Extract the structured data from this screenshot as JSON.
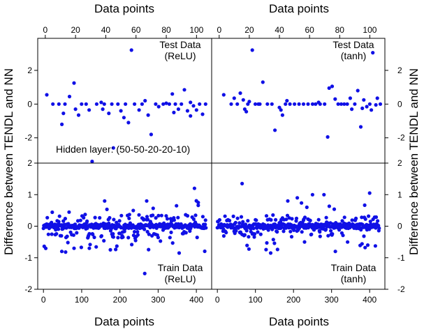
{
  "figure": {
    "x_axis_title": "Data points",
    "y_axis_title": "Difference between TENDL and NN",
    "point_color": "#1010e6"
  },
  "chart_data": [
    {
      "type": "scatter",
      "panel": "top-left",
      "annotation": [
        "Test Data",
        "(ReLU)"
      ],
      "extra_annotation": "Hidden layer: (50-50-20-20-10)",
      "xlim": [
        -5,
        110
      ],
      "ylim": [
        -3.5,
        3.9
      ],
      "xticks": [
        0,
        20,
        40,
        60,
        80,
        100
      ],
      "yticks": [
        -2,
        0,
        2
      ],
      "points": [
        [
          1,
          0.55
        ],
        [
          5,
          0.0
        ],
        [
          9,
          0.0
        ],
        [
          13,
          0.0
        ],
        [
          16,
          0.45
        ],
        [
          19,
          1.25
        ],
        [
          20,
          -0.3
        ],
        [
          24,
          0.0
        ],
        [
          27,
          0.0
        ],
        [
          29,
          -0.35
        ],
        [
          31,
          -3.4
        ],
        [
          34,
          0.0
        ],
        [
          37,
          0.1
        ],
        [
          39,
          0.0
        ],
        [
          42,
          -0.55
        ],
        [
          44,
          0.0
        ],
        [
          45,
          -2.6
        ],
        [
          48,
          0.0
        ],
        [
          50,
          -0.4
        ],
        [
          53,
          0.0
        ],
        [
          55,
          -1.1
        ],
        [
          57,
          3.2
        ],
        [
          59,
          0.0
        ],
        [
          62,
          -0.35
        ],
        [
          64,
          0.0
        ],
        [
          66,
          0.2
        ],
        [
          68,
          -0.65
        ],
        [
          70,
          -1.8
        ],
        [
          73,
          0.0
        ],
        [
          75,
          -0.15
        ],
        [
          78,
          0.0
        ],
        [
          80,
          0.05
        ],
        [
          82,
          0.0
        ],
        [
          84,
          0.6
        ],
        [
          86,
          0.0
        ],
        [
          88,
          -0.3
        ],
        [
          90,
          0.0
        ],
        [
          92,
          0.85
        ],
        [
          94,
          -0.4
        ],
        [
          96,
          -0.7
        ],
        [
          98,
          -0.1
        ],
        [
          100,
          -0.35
        ],
        [
          102,
          0.0
        ],
        [
          104,
          -0.6
        ],
        [
          106,
          0.0
        ],
        [
          11,
          -1.2
        ],
        [
          12,
          -0.55
        ],
        [
          22,
          -0.65
        ],
        [
          38,
          -0.3
        ],
        [
          52,
          -0.8
        ],
        [
          85,
          -0.5
        ],
        [
          96,
          0.1
        ]
      ]
    },
    {
      "type": "scatter",
      "panel": "top-right",
      "annotation": [
        "Test Data",
        "(tanh)"
      ],
      "xlim": [
        -5,
        110
      ],
      "ylim": [
        -3.5,
        3.9
      ],
      "xticks": [
        0,
        20,
        40,
        60,
        80,
        100
      ],
      "yticks": [
        -2,
        0,
        2
      ],
      "points": [
        [
          3,
          0.55
        ],
        [
          8,
          0.0
        ],
        [
          12,
          0.0
        ],
        [
          14,
          0.65
        ],
        [
          16,
          0.25
        ],
        [
          17,
          -0.3
        ],
        [
          18,
          -0.45
        ],
        [
          19,
          0.0
        ],
        [
          22,
          3.2
        ],
        [
          24,
          0.0
        ],
        [
          27,
          0.0
        ],
        [
          29,
          1.3
        ],
        [
          32,
          0.0
        ],
        [
          35,
          0.0
        ],
        [
          37,
          -1.55
        ],
        [
          40,
          -0.2
        ],
        [
          41,
          -0.35
        ],
        [
          42,
          -0.65
        ],
        [
          44,
          0.0
        ],
        [
          47,
          0.0
        ],
        [
          50,
          0.0
        ],
        [
          53,
          0.0
        ],
        [
          56,
          0.0
        ],
        [
          59,
          0.0
        ],
        [
          62,
          0.0
        ],
        [
          64,
          0.0
        ],
        [
          67,
          0.0
        ],
        [
          70,
          0.0
        ],
        [
          72,
          -1.95
        ],
        [
          73,
          0.95
        ],
        [
          75,
          1.05
        ],
        [
          77,
          0.3
        ],
        [
          79,
          0.0
        ],
        [
          81,
          0.0
        ],
        [
          83,
          0.0
        ],
        [
          85,
          0.0
        ],
        [
          87,
          0.35
        ],
        [
          88,
          -0.3
        ],
        [
          90,
          0.0
        ],
        [
          92,
          0.8
        ],
        [
          94,
          -1.35
        ],
        [
          96,
          0.25
        ],
        [
          98,
          -0.15
        ],
        [
          100,
          0.0
        ],
        [
          101,
          -0.35
        ],
        [
          102,
          3.05
        ],
        [
          104,
          -0.05
        ],
        [
          105,
          0.35
        ],
        [
          107,
          0.0
        ],
        [
          10,
          0.35
        ],
        [
          20,
          0.15
        ],
        [
          26,
          0.0
        ],
        [
          45,
          0.2
        ],
        [
          66,
          0.1
        ],
        [
          95,
          -0.25
        ]
      ]
    },
    {
      "type": "scatter",
      "panel": "bottom-left",
      "annotation": [
        "Train Data",
        "(ReLU)"
      ],
      "xlim": [
        -15,
        440
      ],
      "ylim": [
        -2,
        2
      ],
      "xticks": [
        0,
        100,
        200,
        300,
        400
      ],
      "yticks": [
        -2,
        -1,
        0,
        1,
        2
      ],
      "points": []
    },
    {
      "type": "scatter",
      "panel": "bottom-right",
      "annotation": [
        "Train Data",
        "(tanh)"
      ],
      "xlim": [
        -15,
        440
      ],
      "ylim": [
        -2,
        2
      ],
      "xticks": [
        0,
        100,
        200,
        300,
        400
      ],
      "yticks": [
        -2,
        -1,
        0,
        1,
        2
      ],
      "points": []
    }
  ]
}
